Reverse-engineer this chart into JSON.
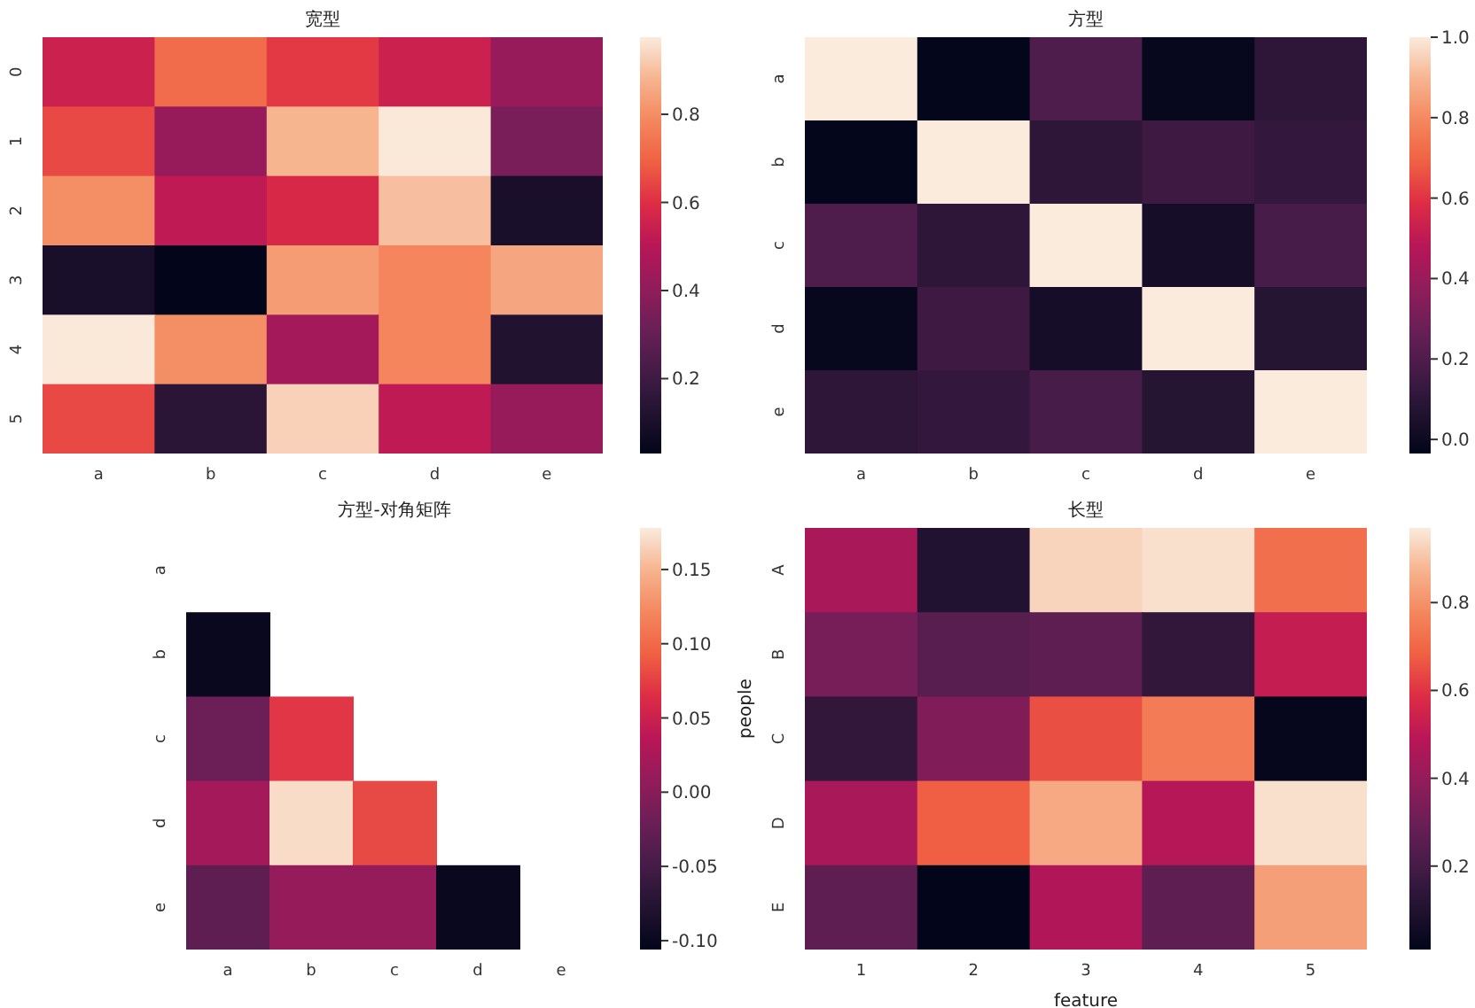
{
  "chart_data": [
    {
      "type": "heatmap",
      "title": "宽型",
      "categories": [
        "a",
        "b",
        "c",
        "d",
        "e"
      ],
      "y_categories": [
        "0",
        "1",
        "2",
        "3",
        "4",
        "5"
      ],
      "cells": [
        [
          0.55,
          0.72,
          0.62,
          0.55,
          0.42
        ],
        [
          0.65,
          0.42,
          0.88,
          0.97,
          0.35
        ],
        [
          0.8,
          0.52,
          0.58,
          0.9,
          0.1
        ],
        [
          0.1,
          0.03,
          0.83,
          0.78,
          0.85
        ],
        [
          0.97,
          0.8,
          0.45,
          0.78,
          0.12
        ],
        [
          0.65,
          0.15,
          0.93,
          0.52,
          0.42
        ]
      ],
      "clim": [
        0.03,
        0.975
      ],
      "cticks": [
        0.2,
        0.4,
        0.6,
        0.8
      ]
    },
    {
      "type": "heatmap",
      "title": "方型",
      "categories": [
        "a",
        "b",
        "c",
        "d",
        "e"
      ],
      "y_categories": [
        "a",
        "b",
        "c",
        "d",
        "e"
      ],
      "cells": [
        [
          1.0,
          -0.03,
          0.2,
          -0.02,
          0.1
        ],
        [
          -0.03,
          1.0,
          0.1,
          0.15,
          0.12
        ],
        [
          0.2,
          0.1,
          1.0,
          0.03,
          0.18
        ],
        [
          -0.02,
          0.15,
          0.03,
          1.0,
          0.08
        ],
        [
          0.1,
          0.12,
          0.18,
          0.08,
          1.0
        ]
      ],
      "clim": [
        -0.035,
        1.0
      ],
      "cticks": [
        {
          "value": 0,
          "label": "0.0"
        },
        0.2,
        0.4,
        0.6,
        0.8,
        {
          "value": 1,
          "label": "1.0"
        }
      ]
    },
    {
      "type": "heatmap",
      "title": "方型-对角矩阵",
      "categories": [
        "a",
        "b",
        "c",
        "d",
        "e"
      ],
      "y_categories": [
        "a",
        "b",
        "c",
        "d",
        "e"
      ],
      "cells": [
        [
          null,
          null,
          null,
          null,
          null
        ],
        [
          -0.1,
          null,
          null,
          null,
          null
        ],
        [
          -0.02,
          0.07,
          null,
          null,
          null
        ],
        [
          0.02,
          0.17,
          0.08,
          null,
          null
        ],
        [
          -0.03,
          0.01,
          0.01,
          -0.1,
          null
        ]
      ],
      "clim": [
        -0.106,
        0.178
      ],
      "cticks": [
        {
          "value": -0.1,
          "label": "-0.10"
        },
        {
          "value": -0.05,
          "label": "-0.05"
        },
        {
          "value": 0,
          "label": "0.00"
        },
        0.05,
        {
          "value": 0.1,
          "label": "0.10"
        },
        0.15
      ]
    },
    {
      "type": "heatmap",
      "title": "长型",
      "xlabel": "feature",
      "ylabel": "people",
      "categories": [
        "1",
        "2",
        "3",
        "4",
        "5"
      ],
      "y_categories": [
        "A",
        "B",
        "C",
        "D",
        "E"
      ],
      "cells": [
        [
          0.45,
          0.1,
          0.93,
          0.95,
          0.72
        ],
        [
          0.33,
          0.25,
          0.27,
          0.15,
          0.52
        ],
        [
          0.15,
          0.35,
          0.65,
          0.75,
          0.02
        ],
        [
          0.45,
          0.68,
          0.85,
          0.48,
          0.95
        ],
        [
          0.27,
          0.01,
          0.47,
          0.27,
          0.83
        ]
      ],
      "clim": [
        0.01,
        0.97
      ],
      "cticks": [
        0.2,
        0.4,
        0.6,
        0.8
      ]
    }
  ]
}
